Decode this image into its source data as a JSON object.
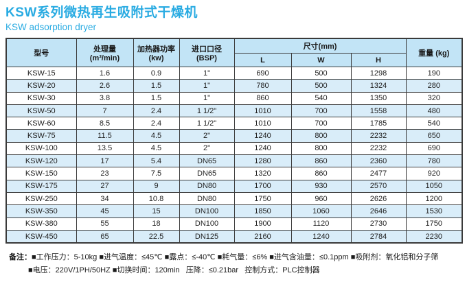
{
  "page": {
    "title_cn": "KSW系列微热再生吸附式干燥机",
    "title_en": "KSW adsorption  dryer"
  },
  "colors": {
    "title_accent": "#29abe2",
    "header_bg": "#c2e4f6",
    "row_alt_bg": "#d9edf9",
    "border": "#3a3a3a"
  },
  "table": {
    "headers": {
      "model": "型号",
      "capacity": "处理量",
      "capacity_unit": "(m³/min)",
      "heater": "加热器功率",
      "heater_unit": "(kw)",
      "inlet": "进口口径",
      "inlet_unit": "(BSP)",
      "dimensions": "尺寸(mm)",
      "dim_l": "L",
      "dim_w": "W",
      "dim_h": "H",
      "weight": "重量 (kg)"
    },
    "rows": [
      [
        "KSW-15",
        "1.6",
        "0.9",
        "1\"",
        "690",
        "500",
        "1298",
        "190"
      ],
      [
        "KSW-20",
        "2.6",
        "1.5",
        "1\"",
        "780",
        "500",
        "1324",
        "280"
      ],
      [
        "KSW-30",
        "3.8",
        "1.5",
        "1\"",
        "860",
        "540",
        "1350",
        "320"
      ],
      [
        "KSW-50",
        "7",
        "2.4",
        "1 1/2\"",
        "1010",
        "700",
        "1558",
        "480"
      ],
      [
        "KSW-60",
        "8.5",
        "2.4",
        "1 1/2\"",
        "1010",
        "700",
        "1785",
        "540"
      ],
      [
        "KSW-75",
        "11.5",
        "4.5",
        "2\"",
        "1240",
        "800",
        "2232",
        "650"
      ],
      [
        "KSW-100",
        "13.5",
        "4.5",
        "2\"",
        "1240",
        "800",
        "2232",
        "690"
      ],
      [
        "KSW-120",
        "17",
        "5.4",
        "DN65",
        "1280",
        "860",
        "2360",
        "780"
      ],
      [
        "KSW-150",
        "23",
        "7.5",
        "DN65",
        "1320",
        "860",
        "2477",
        "920"
      ],
      [
        "KSW-175",
        "27",
        "9",
        "DN80",
        "1700",
        "930",
        "2570",
        "1050"
      ],
      [
        "KSW-250",
        "34",
        "10.8",
        "DN80",
        "1750",
        "960",
        "2626",
        "1200"
      ],
      [
        "KSW-350",
        "45",
        "15",
        "DN100",
        "1850",
        "1060",
        "2646",
        "1530"
      ],
      [
        "KSW-380",
        "55",
        "18",
        "DN100",
        "1900",
        "1120",
        "2730",
        "1750"
      ],
      [
        "KSW-450",
        "65",
        "22.5",
        "DN125",
        "2160",
        "1240",
        "2784",
        "2230"
      ]
    ]
  },
  "notes": {
    "label": "备注：",
    "line1": "■工作压力：5-10kg ■进气温度：≤45℃ ■露点：≤-40℃ ■耗气量：≤6% ■进气含油量：≤0.1ppm ■吸附剂：氧化铝和分子筛",
    "line2": "■电压：220V/1PH/50HZ ■切换时间：120min   压降：≤0.21bar   控制方式：PLC控制器"
  }
}
